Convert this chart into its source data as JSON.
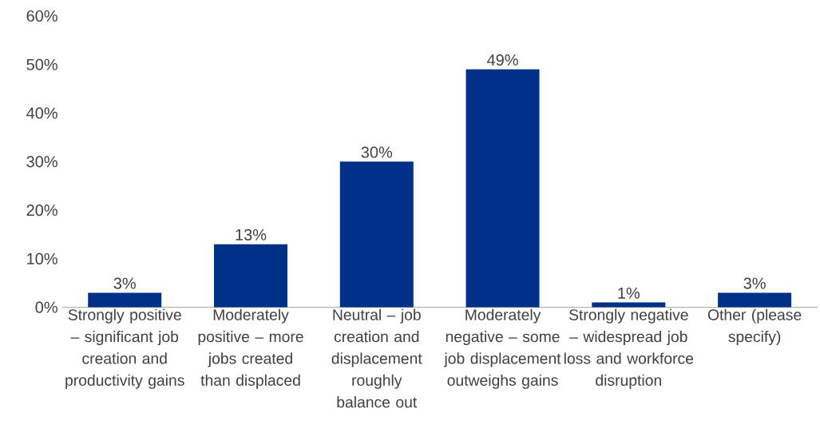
{
  "chart_data": {
    "type": "bar",
    "categories": [
      "Strongly positive – significant job creation and productivity gains",
      "Moderately positive – more jobs created than displaced",
      "Neutral – job creation and displacement roughly balance out",
      "Moderately negative – some job displacement outweighs gains",
      "Strongly negative – widespread job loss and workforce disruption",
      "Other (please specify)"
    ],
    "values": [
      3,
      13,
      30,
      49,
      1,
      3
    ],
    "value_labels": [
      "3%",
      "13%",
      "30%",
      "49%",
      "1%",
      "3%"
    ],
    "color": "#003087",
    "ylim": [
      0,
      60
    ],
    "yticks": [
      {
        "value": 0,
        "label": "0%"
      },
      {
        "value": 10,
        "label": "10%"
      },
      {
        "value": 20,
        "label": "20%"
      },
      {
        "value": 30,
        "label": "30%"
      },
      {
        "value": 40,
        "label": "40%"
      },
      {
        "value": 50,
        "label": "50%"
      },
      {
        "value": 60,
        "label": "60%"
      }
    ],
    "grid": false
  }
}
